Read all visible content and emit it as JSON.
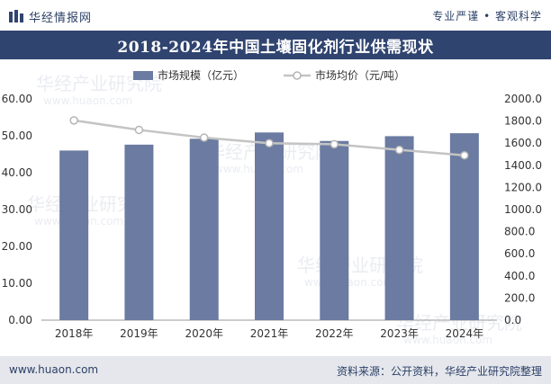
{
  "header": {
    "brand_name": "华经情报网",
    "slogan": "专业严谨 • 客观科学"
  },
  "title": "2018-2024年中国土壤固化剂行业供需现状",
  "footer": {
    "url": "www.huaon.com",
    "source": "资料来源：公开资料，华经产业研究院整理"
  },
  "watermark": {
    "text": "华经产业研究院",
    "url_text": "www.huaon.com"
  },
  "colors": {
    "title_band": "#304470",
    "bar": "#6b7ba1",
    "line": "#c4c4c4",
    "marker_fill": "#ffffff",
    "text_dark": "#2b3f66",
    "footer_bg": "#e5e7ec"
  },
  "chart_data": {
    "type": "bar",
    "categories": [
      "2018年",
      "2019年",
      "2020年",
      "2021年",
      "2022年",
      "2023年",
      "2024年"
    ],
    "series": [
      {
        "name": "市场规模（亿元）",
        "type": "bar",
        "axis": "left",
        "values": [
          46.0,
          47.6,
          49.2,
          50.9,
          48.6,
          49.9,
          50.7
        ]
      },
      {
        "name": "市场均价（元/吨）",
        "type": "line",
        "axis": "right",
        "values": [
          1806,
          1720,
          1650,
          1600,
          1590,
          1540,
          1490
        ]
      }
    ],
    "y_left": {
      "min": 0,
      "max": 60,
      "step": 10,
      "ticks": [
        "0.00",
        "10.00",
        "20.00",
        "30.00",
        "40.00",
        "50.00",
        "60.00"
      ]
    },
    "y_right": {
      "min": 0,
      "max": 2000,
      "step": 200,
      "ticks": [
        "0.0",
        "200.0",
        "400.0",
        "600.0",
        "800.0",
        "1000.0",
        "1200.0",
        "1400.0",
        "1600.0",
        "1800.0",
        "2000.0"
      ]
    },
    "legend_position": "top-center",
    "grid": false
  }
}
